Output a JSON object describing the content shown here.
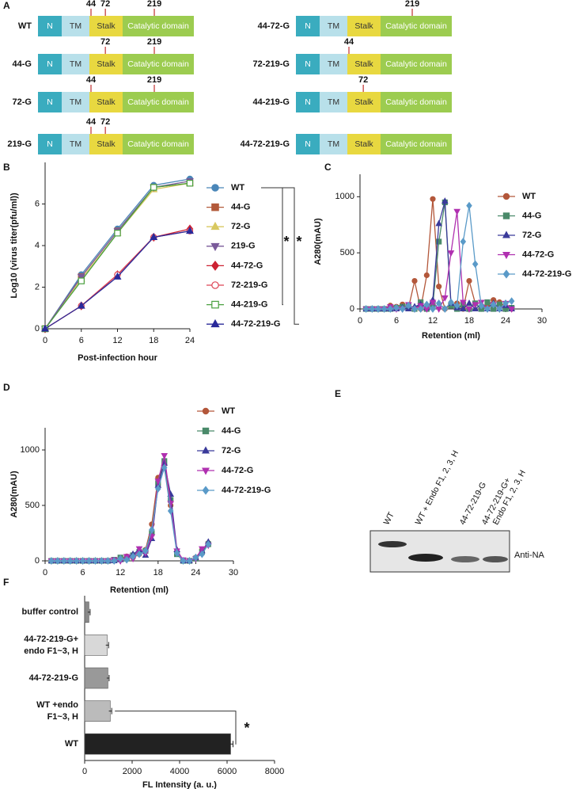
{
  "panel_a": {
    "label": "A",
    "domains": [
      "N",
      "TM",
      "Stalk",
      "Catalytic domain"
    ],
    "constructs": [
      {
        "name": "WT",
        "sites": [
          44,
          72,
          219
        ]
      },
      {
        "name": "44-G",
        "sites": [
          72,
          219
        ]
      },
      {
        "name": "72-G",
        "sites": [
          44,
          219
        ]
      },
      {
        "name": "219-G",
        "sites": [
          44,
          72
        ]
      },
      {
        "name": "44-72-G",
        "sites": [
          219
        ]
      },
      {
        "name": "72-219-G",
        "sites": [
          44
        ]
      },
      {
        "name": "44-219-G",
        "sites": [
          72
        ]
      },
      {
        "name": "44-72-219-G",
        "sites": []
      }
    ]
  },
  "panel_e": {
    "label": "E",
    "lanes": [
      [
        "WT"
      ],
      [
        "WT + Endo F1, 2, 3, H"
      ],
      [
        "44-72-219-G"
      ],
      [
        "44-72-219-G+",
        "Endo F1, 2, 3, H"
      ]
    ],
    "antibody": "Anti-NA"
  },
  "chart_data": [
    {
      "type": "line",
      "label": "B",
      "x_label": "Post-infection hour",
      "y_label": "Log10 (virus titer(pfu/ml))",
      "x": [
        0,
        6,
        12,
        18,
        24
      ],
      "xlim": [
        0,
        24
      ],
      "xticks": [
        0,
        6,
        12,
        18,
        24
      ],
      "ylim": [
        0,
        8
      ],
      "yticks": [
        0,
        2,
        4,
        6
      ],
      "annotations": [
        "*",
        "*"
      ],
      "series": [
        {
          "name": "WT",
          "color": "#4a86b8",
          "marker": "circle",
          "open": false,
          "values": [
            0,
            2.6,
            4.8,
            6.9,
            7.2
          ]
        },
        {
          "name": "44-G",
          "color": "#b35a3a",
          "marker": "square",
          "open": false,
          "values": [
            0,
            2.5,
            4.7,
            6.8,
            7.0
          ]
        },
        {
          "name": "72-G",
          "color": "#d8c860",
          "marker": "triangle",
          "open": false,
          "values": [
            0,
            2.4,
            4.6,
            6.7,
            7.0
          ]
        },
        {
          "name": "219-G",
          "color": "#7a5a9a",
          "marker": "triangle-down",
          "open": false,
          "values": [
            0,
            2.5,
            4.7,
            6.8,
            7.1
          ]
        },
        {
          "name": "44-72-G",
          "color": "#cc2233",
          "marker": "diamond",
          "open": false,
          "values": [
            0,
            1.1,
            2.6,
            4.4,
            4.8
          ]
        },
        {
          "name": "72-219-G",
          "color": "#dd4455",
          "marker": "circle",
          "open": true,
          "values": [
            0,
            1.1,
            2.6,
            4.4,
            4.7
          ]
        },
        {
          "name": "44-219-G",
          "color": "#4aa040",
          "marker": "square",
          "open": true,
          "values": [
            0,
            2.3,
            4.6,
            6.8,
            7.0
          ]
        },
        {
          "name": "44-72-219-G",
          "color": "#2a2a9a",
          "marker": "triangle",
          "open": false,
          "values": [
            0,
            1.1,
            2.5,
            4.4,
            4.7
          ]
        }
      ]
    },
    {
      "type": "line",
      "label": "C",
      "x_label": "Retention (ml)",
      "y_label": "A280(mAU)",
      "x": [
        1,
        2,
        3,
        4,
        5,
        6,
        7,
        8,
        9,
        10,
        11,
        12,
        13,
        14,
        15,
        16,
        17,
        18,
        19,
        20,
        21,
        22,
        23,
        24,
        25
      ],
      "xlim": [
        0,
        30
      ],
      "xticks": [
        0,
        6,
        12,
        18,
        24,
        30
      ],
      "ylim": [
        0,
        1200
      ],
      "yticks": [
        0,
        500,
        1000
      ],
      "series": [
        {
          "name": "WT",
          "color": "#b3573a",
          "marker": "circle",
          "open": false,
          "values": [
            0,
            0,
            0,
            0,
            30,
            20,
            40,
            10,
            250,
            0,
            300,
            980,
            200,
            0,
            40,
            50,
            0,
            250,
            50,
            0,
            20,
            80,
            60,
            20,
            0
          ]
        },
        {
          "name": "44-G",
          "color": "#4a8a6a",
          "marker": "square",
          "open": false,
          "values": [
            0,
            0,
            0,
            0,
            0,
            10,
            20,
            30,
            0,
            60,
            0,
            30,
            600,
            950,
            30,
            0,
            40,
            0,
            50,
            0,
            60,
            0,
            40,
            0,
            10
          ]
        },
        {
          "name": "72-G",
          "color": "#3a3a9a",
          "marker": "triangle",
          "open": false,
          "values": [
            0,
            0,
            0,
            0,
            0,
            0,
            10,
            0,
            20,
            40,
            10,
            80,
            760,
            960,
            50,
            10,
            0,
            50,
            0,
            40,
            0,
            50,
            0,
            30,
            0
          ]
        },
        {
          "name": "44-72-G",
          "color": "#b030b0",
          "marker": "triangle-down",
          "open": false,
          "values": [
            0,
            0,
            0,
            0,
            20,
            0,
            0,
            40,
            0,
            30,
            0,
            60,
            0,
            100,
            500,
            870,
            60,
            0,
            40,
            60,
            0,
            40,
            0,
            50,
            0
          ]
        },
        {
          "name": "44-72-219-G",
          "color": "#5a9ac8",
          "marker": "diamond",
          "open": false,
          "values": [
            0,
            0,
            0,
            0,
            0,
            10,
            0,
            30,
            0,
            0,
            40,
            0,
            50,
            0,
            60,
            30,
            600,
            920,
            400,
            30,
            0,
            40,
            0,
            50,
            70
          ]
        }
      ]
    },
    {
      "type": "line",
      "label": "D",
      "x_label": "Retention (ml)",
      "y_label": "A280(mAU)",
      "x": [
        1,
        2,
        3,
        4,
        5,
        6,
        7,
        8,
        9,
        10,
        11,
        12,
        13,
        14,
        15,
        16,
        17,
        18,
        19,
        20,
        21,
        22,
        23,
        24,
        25,
        26
      ],
      "xlim": [
        0,
        30
      ],
      "xticks": [
        0,
        6,
        12,
        18,
        24,
        30
      ],
      "ylim": [
        0,
        1200
      ],
      "yticks": [
        0,
        500,
        1000
      ],
      "series": [
        {
          "name": "WT",
          "color": "#b3573a",
          "marker": "circle",
          "open": false,
          "values": [
            0,
            0,
            0,
            0,
            0,
            0,
            0,
            0,
            0,
            0,
            0,
            20,
            40,
            30,
            60,
            100,
            330,
            750,
            870,
            500,
            80,
            0,
            0,
            30,
            100,
            160
          ]
        },
        {
          "name": "44-G",
          "color": "#4a8a6a",
          "marker": "square",
          "open": false,
          "values": [
            0,
            0,
            0,
            0,
            0,
            0,
            0,
            0,
            0,
            0,
            10,
            30,
            20,
            50,
            80,
            90,
            250,
            700,
            900,
            550,
            60,
            0,
            0,
            20,
            80,
            150
          ]
        },
        {
          "name": "72-G",
          "color": "#3a3a9a",
          "marker": "triangle",
          "open": false,
          "values": [
            0,
            0,
            0,
            0,
            0,
            0,
            0,
            0,
            0,
            0,
            0,
            10,
            30,
            60,
            100,
            50,
            200,
            680,
            880,
            600,
            100,
            0,
            0,
            30,
            90,
            170
          ]
        },
        {
          "name": "44-72-G",
          "color": "#b030b0",
          "marker": "triangle-down",
          "open": false,
          "values": [
            0,
            0,
            0,
            0,
            0,
            0,
            0,
            0,
            0,
            0,
            10,
            0,
            40,
            20,
            110,
            70,
            220,
            720,
            950,
            520,
            90,
            10,
            0,
            20,
            110,
            140
          ]
        },
        {
          "name": "44-72-219-G",
          "color": "#5a9ac8",
          "marker": "diamond",
          "open": false,
          "values": [
            0,
            0,
            0,
            0,
            0,
            0,
            0,
            0,
            0,
            0,
            0,
            20,
            10,
            40,
            60,
            90,
            280,
            650,
            840,
            450,
            70,
            0,
            0,
            30,
            60,
            150
          ]
        }
      ]
    },
    {
      "type": "bar",
      "label": "F",
      "orientation": "horizontal",
      "x_label": "FL Intensity (a. u.)",
      "categories": [
        [
          "buffer control"
        ],
        [
          "44-72-219-G+",
          "endo F1~3, H"
        ],
        [
          "44-72-219-G"
        ],
        [
          "WT +endo",
          "F1~3, H"
        ],
        [
          "WT"
        ]
      ],
      "values": [
        180,
        950,
        980,
        1080,
        6150
      ],
      "errors": [
        50,
        60,
        50,
        60,
        100
      ],
      "colors": [
        "#888888",
        "#d8d8d8",
        "#999999",
        "#bbbbbb",
        "#222222"
      ],
      "xlim": [
        0,
        8000
      ],
      "xticks": [
        0,
        2000,
        4000,
        6000,
        8000
      ],
      "annotations": [
        "*"
      ]
    }
  ]
}
